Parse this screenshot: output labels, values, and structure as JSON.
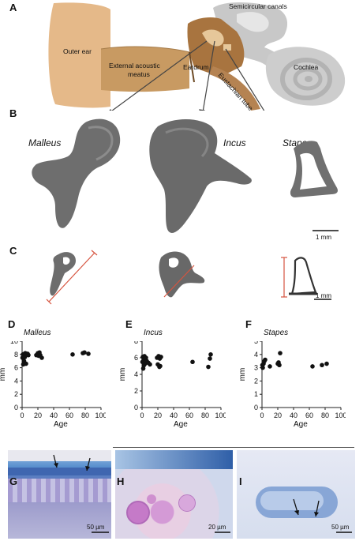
{
  "panels": {
    "a": "A",
    "b": "B",
    "c": "C",
    "d": "D",
    "e": "E",
    "f": "F",
    "g": "G",
    "h": "H",
    "i": "I"
  },
  "anatomy": {
    "outer_ear": "Outer ear",
    "meatus_line1": "External acoustic",
    "meatus_line2": "meatus",
    "eardrum": "Eardrum",
    "eustachian": "Eustachian tube",
    "semicircular": "Semicircular canals",
    "cochlea": "Cochlea"
  },
  "bones": {
    "malleus": "Malleus",
    "incus": "Incus",
    "stapes": "Stapes"
  },
  "scale_bars": {
    "b": "1 mm",
    "c": "1 mm",
    "g": "50 µm",
    "h": "20 µm",
    "i": "50 µm"
  },
  "chart_data": [
    {
      "type": "scatter",
      "title": "Malleus",
      "xlabel": "Age",
      "ylabel": "mm",
      "xlim": [
        0,
        100
      ],
      "ylim": [
        0,
        10
      ],
      "xticks": [
        "0",
        "20",
        "40",
        "60",
        "80",
        "100"
      ],
      "yticks": [
        "0",
        "2",
        "4",
        "6",
        "8",
        "10"
      ],
      "points": [
        [
          0.5,
          7.5
        ],
        [
          1,
          8.0
        ],
        [
          1.5,
          6.5
        ],
        [
          2,
          7.8
        ],
        [
          2.5,
          7.0
        ],
        [
          3,
          8.1
        ],
        [
          3.5,
          7.6
        ],
        [
          4,
          8.2
        ],
        [
          5,
          6.6
        ],
        [
          7,
          8.1
        ],
        [
          8,
          7.9
        ],
        [
          18,
          7.9
        ],
        [
          20,
          8.2
        ],
        [
          21,
          7.8
        ],
        [
          22,
          8.3
        ],
        [
          23,
          7.9
        ],
        [
          25,
          7.5
        ],
        [
          64,
          8.0
        ],
        [
          77,
          8.2
        ],
        [
          79,
          8.3
        ],
        [
          84,
          8.1
        ]
      ]
    },
    {
      "type": "scatter",
      "title": "Incus",
      "xlabel": "Age",
      "ylabel": "mm",
      "xlim": [
        0,
        100
      ],
      "ylim": [
        0,
        8
      ],
      "xticks": [
        "0",
        "20",
        "40",
        "60",
        "80",
        "100"
      ],
      "yticks": [
        "0",
        "2",
        "4",
        "6",
        "8"
      ],
      "points": [
        [
          0.5,
          5.5
        ],
        [
          1,
          6.1
        ],
        [
          1.5,
          4.7
        ],
        [
          2,
          5.8
        ],
        [
          2.5,
          5.1
        ],
        [
          3,
          6.2
        ],
        [
          3.5,
          5.9
        ],
        [
          4,
          5.3
        ],
        [
          5,
          6.0
        ],
        [
          6,
          5.6
        ],
        [
          8,
          5.4
        ],
        [
          10,
          5.2
        ],
        [
          19,
          6.0
        ],
        [
          20,
          5.2
        ],
        [
          21,
          6.2
        ],
        [
          22,
          4.9
        ],
        [
          22.5,
          5.9
        ],
        [
          23,
          5.0
        ],
        [
          24,
          6.1
        ],
        [
          64,
          5.5
        ],
        [
          84,
          4.9
        ],
        [
          86,
          5.9
        ],
        [
          87,
          6.4
        ]
      ]
    },
    {
      "type": "scatter",
      "title": "Stapes",
      "xlabel": "Age",
      "ylabel": "mm",
      "xlim": [
        0,
        100
      ],
      "ylim": [
        0,
        5
      ],
      "xticks": [
        "0",
        "20",
        "40",
        "60",
        "80",
        "100"
      ],
      "yticks": [
        "0",
        "1",
        "2",
        "3",
        "4",
        "5"
      ],
      "points": [
        [
          0.5,
          3.2
        ],
        [
          1,
          3.0
        ],
        [
          2,
          3.3
        ],
        [
          3,
          3.5
        ],
        [
          4,
          3.6
        ],
        [
          10,
          3.1
        ],
        [
          20,
          3.3
        ],
        [
          21,
          3.4
        ],
        [
          22,
          3.2
        ],
        [
          23,
          4.1
        ],
        [
          64,
          3.1
        ],
        [
          76,
          3.2
        ],
        [
          82,
          3.3
        ]
      ]
    }
  ]
}
